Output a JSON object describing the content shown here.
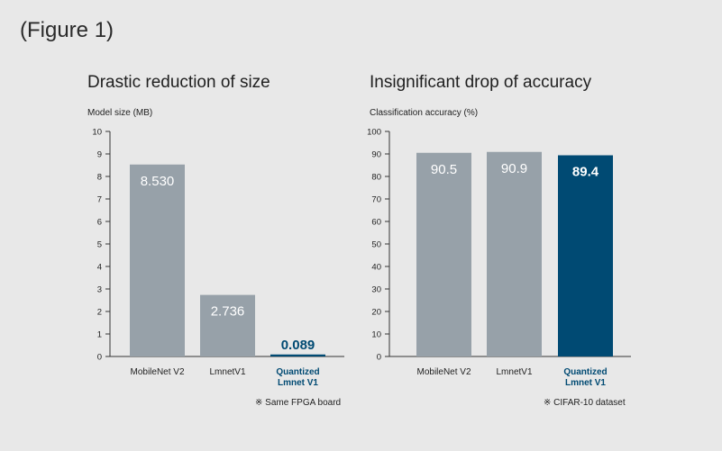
{
  "figure_label": "(Figure 1)",
  "colors": {
    "gray_bar": "#97a1a9",
    "highlight_bar": "#004a73",
    "axis": "#333333"
  },
  "chart_data": [
    {
      "type": "bar",
      "title": "Drastic reduction of size",
      "ylabel": "Model size (MB)",
      "xlabel": "",
      "categories": [
        "MobileNet V2",
        "LmnetV1",
        "Quantized\nLmnet V1"
      ],
      "values": [
        8.53,
        2.736,
        0.089
      ],
      "value_labels": [
        "8.530",
        "2.736",
        "0.089"
      ],
      "highlight": [
        false,
        false,
        true
      ],
      "ylim": [
        0,
        10
      ],
      "yticks": [
        0,
        1,
        2,
        3,
        4,
        5,
        6,
        7,
        8,
        9,
        10
      ],
      "note": "※ Same FPGA board"
    },
    {
      "type": "bar",
      "title": "Insignificant drop of accuracy",
      "ylabel": "Classification accuracy (%)",
      "xlabel": "",
      "categories": [
        "MobileNet V2",
        "LmnetV1",
        "Quantized\nLmnet V1"
      ],
      "values": [
        90.5,
        90.9,
        89.4
      ],
      "value_labels": [
        "90.5",
        "90.9",
        "89.4"
      ],
      "highlight": [
        false,
        false,
        true
      ],
      "ylim": [
        0,
        100
      ],
      "yticks": [
        0,
        10,
        20,
        30,
        40,
        50,
        60,
        70,
        80,
        90,
        100
      ],
      "note": "※ CIFAR-10 dataset"
    }
  ]
}
